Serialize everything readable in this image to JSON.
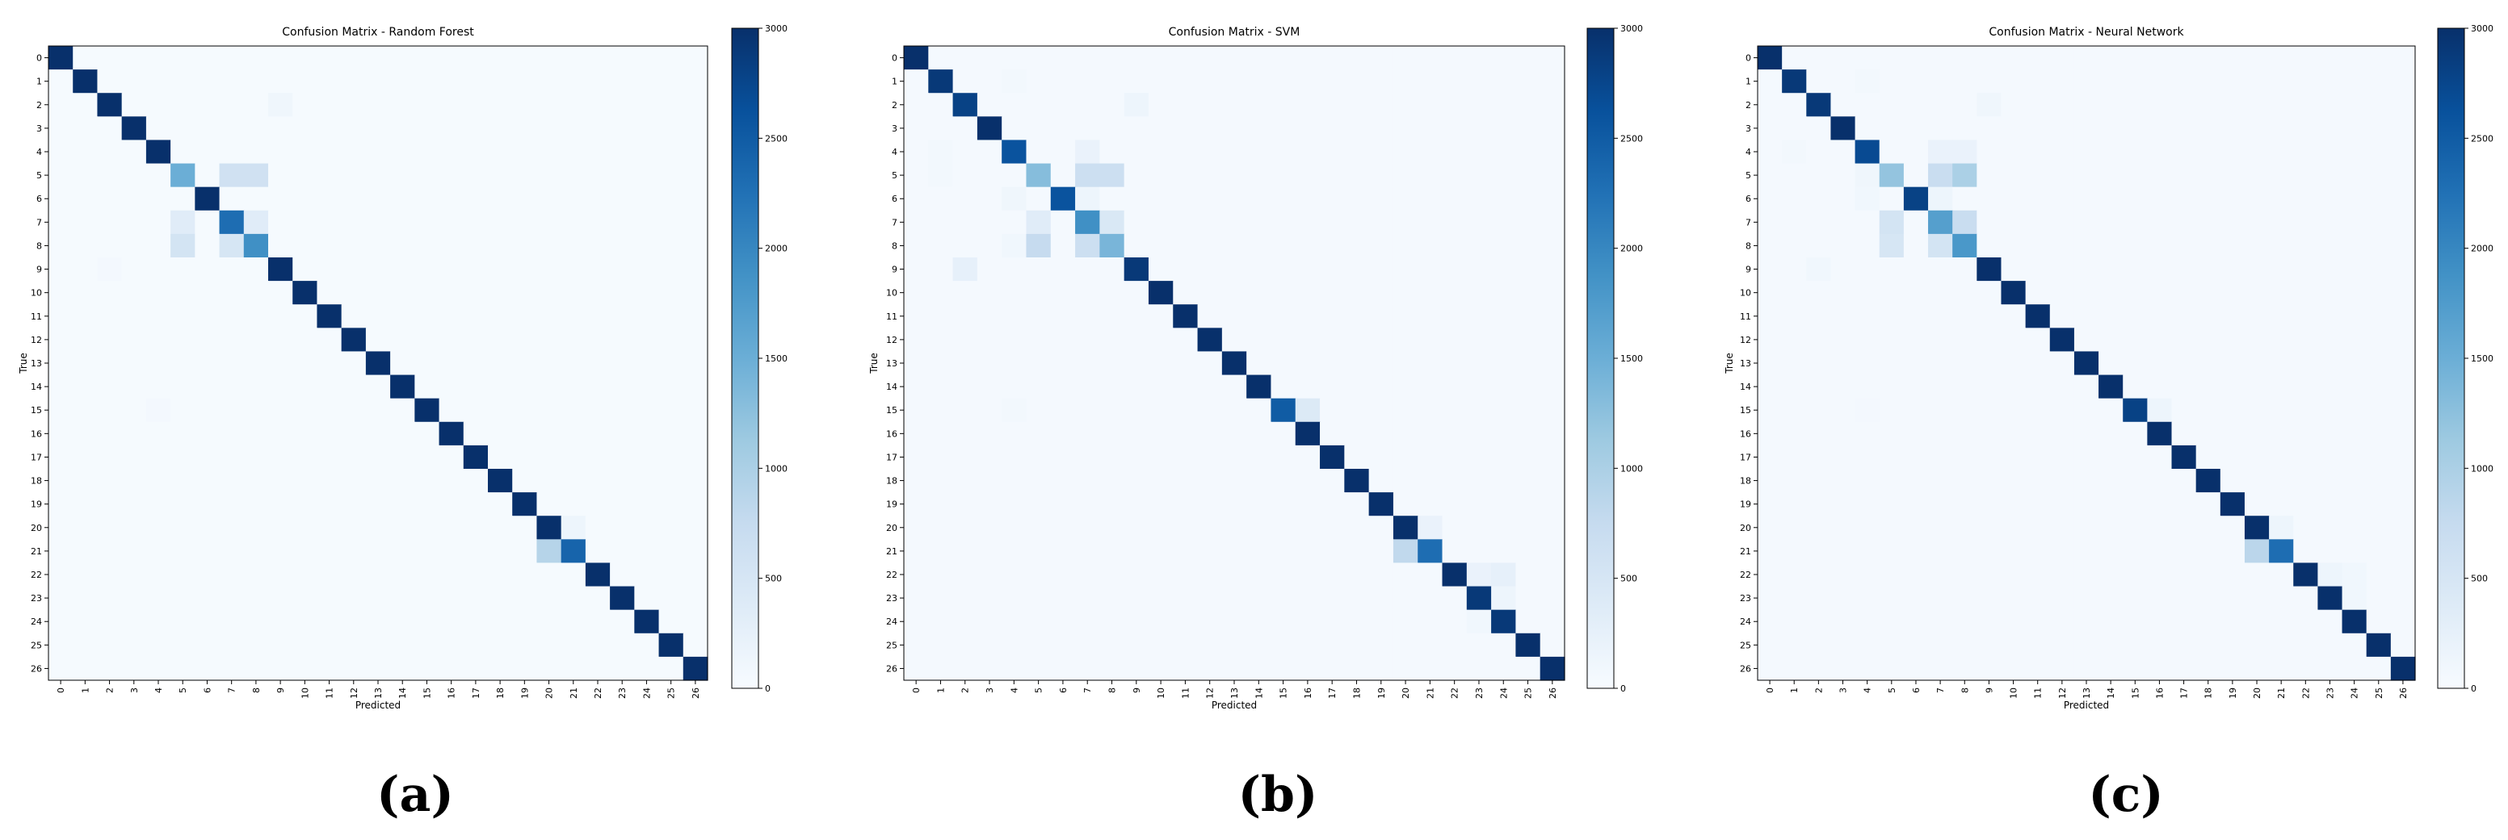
{
  "chart_data": [
    {
      "type": "heatmap",
      "panel_label": "(a)",
      "title": "Confusion Matrix - Random Forest",
      "xlabel": "Predicted",
      "ylabel": "True",
      "labels": [
        "0",
        "1",
        "2",
        "3",
        "4",
        "5",
        "6",
        "7",
        "8",
        "9",
        "10",
        "11",
        "12",
        "13",
        "14",
        "15",
        "16",
        "17",
        "18",
        "19",
        "20",
        "21",
        "22",
        "23",
        "24",
        "25",
        "26"
      ],
      "colorbar": {
        "min": 0,
        "max": 3000,
        "ticks": [
          0,
          500,
          1000,
          1500,
          2000,
          2500,
          3000
        ],
        "colormap": "Blues"
      },
      "diagonal": [
        3000,
        3000,
        3000,
        3000,
        3000,
        1500,
        3000,
        2300,
        1900,
        3000,
        3000,
        3000,
        3000,
        3000,
        3000,
        3000,
        3000,
        3000,
        3000,
        3000,
        3000,
        2400,
        3000,
        3000,
        3000,
        3000,
        3000
      ],
      "off_diagonal": [
        [
          2,
          9,
          120
        ],
        [
          5,
          7,
          600
        ],
        [
          5,
          8,
          600
        ],
        [
          7,
          5,
          350
        ],
        [
          7,
          8,
          350
        ],
        [
          8,
          5,
          550
        ],
        [
          8,
          7,
          500
        ],
        [
          9,
          2,
          60
        ],
        [
          15,
          4,
          60
        ],
        [
          21,
          20,
          900
        ],
        [
          20,
          21,
          150
        ]
      ],
      "background": 30
    },
    {
      "type": "heatmap",
      "panel_label": "(b)",
      "title": "Confusion Matrix - SVM",
      "xlabel": "Predicted",
      "ylabel": "True",
      "labels": [
        "0",
        "1",
        "2",
        "3",
        "4",
        "5",
        "6",
        "7",
        "8",
        "9",
        "10",
        "11",
        "12",
        "13",
        "14",
        "15",
        "16",
        "17",
        "18",
        "19",
        "20",
        "21",
        "22",
        "23",
        "24",
        "25",
        "26"
      ],
      "colorbar": {
        "min": 0,
        "max": 3000,
        "ticks": [
          0,
          500,
          1000,
          1500,
          2000,
          2500,
          3000
        ],
        "colormap": "Blues"
      },
      "diagonal": [
        3000,
        2900,
        2800,
        3000,
        2600,
        1300,
        2600,
        1900,
        1400,
        2900,
        3000,
        3000,
        3000,
        3000,
        3000,
        2500,
        3000,
        3000,
        3000,
        3000,
        3000,
        2300,
        3000,
        2900,
        2900,
        3000,
        3000
      ],
      "off_diagonal": [
        [
          2,
          9,
          150
        ],
        [
          4,
          7,
          200
        ],
        [
          5,
          7,
          650
        ],
        [
          5,
          8,
          650
        ],
        [
          6,
          7,
          150
        ],
        [
          7,
          5,
          350
        ],
        [
          7,
          8,
          450
        ],
        [
          8,
          5,
          750
        ],
        [
          8,
          7,
          650
        ],
        [
          9,
          2,
          250
        ],
        [
          15,
          16,
          400
        ],
        [
          21,
          20,
          800
        ],
        [
          20,
          21,
          200
        ],
        [
          22,
          23,
          200
        ],
        [
          22,
          24,
          250
        ],
        [
          23,
          24,
          150
        ],
        [
          24,
          23,
          100
        ],
        [
          1,
          4,
          80
        ],
        [
          4,
          1,
          80
        ],
        [
          5,
          1,
          80
        ],
        [
          6,
          4,
          120
        ],
        [
          8,
          4,
          100
        ],
        [
          15,
          4,
          80
        ]
      ],
      "background": 50
    },
    {
      "type": "heatmap",
      "panel_label": "(c)",
      "title": "Confusion Matrix - Neural Network",
      "xlabel": "Predicted",
      "ylabel": "True",
      "labels": [
        "0",
        "1",
        "2",
        "3",
        "4",
        "5",
        "6",
        "7",
        "8",
        "9",
        "10",
        "11",
        "12",
        "13",
        "14",
        "15",
        "16",
        "17",
        "18",
        "19",
        "20",
        "21",
        "22",
        "23",
        "24",
        "25",
        "26"
      ],
      "colorbar": {
        "min": 0,
        "max": 3000,
        "ticks": [
          0,
          500,
          1000,
          1500,
          2000,
          2500,
          3000
        ],
        "colormap": "Blues"
      },
      "diagonal": [
        3000,
        2900,
        2900,
        3000,
        2700,
        1200,
        2800,
        1700,
        1800,
        3000,
        3000,
        3000,
        3000,
        3000,
        3000,
        2800,
        3000,
        3000,
        3000,
        3000,
        3000,
        2300,
        3000,
        3000,
        3000,
        3000,
        3000
      ],
      "off_diagonal": [
        [
          2,
          9,
          120
        ],
        [
          4,
          7,
          200
        ],
        [
          4,
          8,
          200
        ],
        [
          5,
          7,
          700
        ],
        [
          5,
          8,
          1000
        ],
        [
          7,
          5,
          550
        ],
        [
          7,
          8,
          700
        ],
        [
          8,
          5,
          500
        ],
        [
          8,
          7,
          550
        ],
        [
          6,
          7,
          150
        ],
        [
          9,
          2,
          100
        ],
        [
          15,
          16,
          150
        ],
        [
          21,
          20,
          850
        ],
        [
          20,
          21,
          150
        ],
        [
          22,
          23,
          150
        ],
        [
          22,
          24,
          100
        ],
        [
          23,
          24,
          100
        ],
        [
          1,
          4,
          80
        ],
        [
          4,
          1,
          80
        ],
        [
          5,
          4,
          120
        ],
        [
          6,
          4,
          100
        ],
        [
          15,
          4,
          60
        ]
      ],
      "background": 40
    }
  ]
}
